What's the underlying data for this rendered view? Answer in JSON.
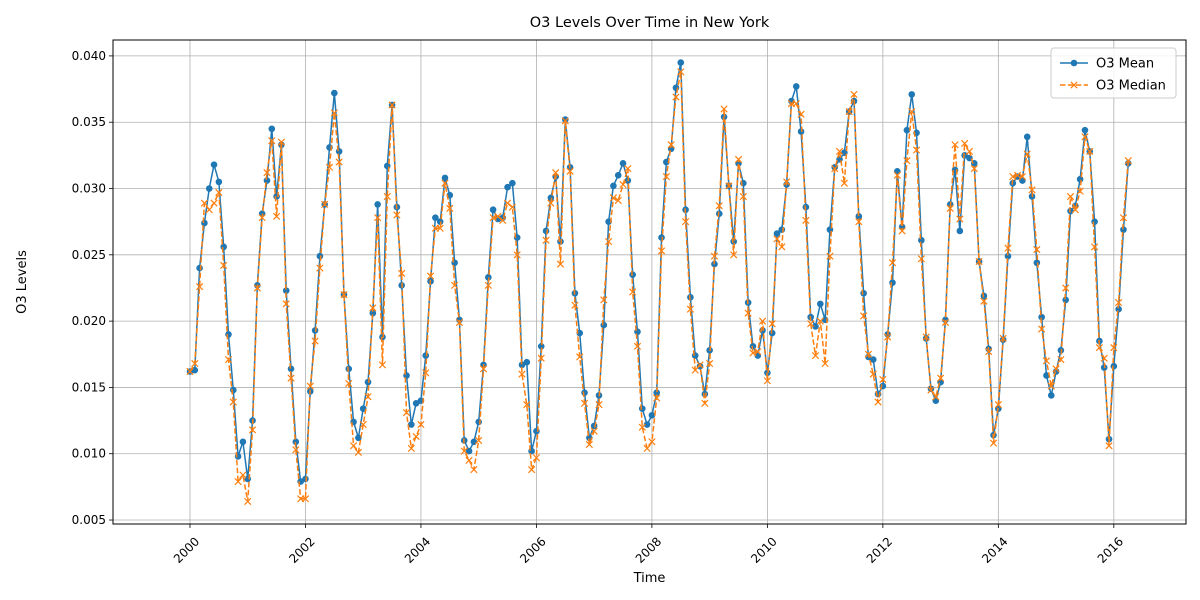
{
  "chart_data": {
    "type": "line",
    "title": "O3 Levels Over Time in New York",
    "xlabel": "Time",
    "ylabel": "O3 Levels",
    "x_start": "2000-01",
    "x_frequency": "monthly",
    "xlim": [
      "1998-09",
      "2017-04"
    ],
    "ylim": [
      0.0047,
      0.0412
    ],
    "xticks": [
      "2000",
      "2002",
      "2004",
      "2006",
      "2008",
      "2010",
      "2012",
      "2014",
      "2016"
    ],
    "yticks": [
      "0.005",
      "0.010",
      "0.015",
      "0.020",
      "0.025",
      "0.030",
      "0.035",
      "0.040"
    ],
    "grid": true,
    "legend_position": "top-right",
    "series": [
      {
        "name": "O3 Mean",
        "color": "#1f77b4",
        "marker": "circle",
        "line_style": "solid",
        "values": [
          0.0162,
          0.0163,
          0.024,
          0.0274,
          0.03,
          0.0318,
          0.0305,
          0.0256,
          0.019,
          0.0148,
          0.0098,
          0.0109,
          0.0081,
          0.0125,
          0.0227,
          0.0281,
          0.0306,
          0.0345,
          0.0294,
          0.0333,
          0.0223,
          0.0164,
          0.0109,
          0.0079,
          0.0081,
          0.0147,
          0.0193,
          0.0249,
          0.0288,
          0.0331,
          0.0372,
          0.0328,
          0.022,
          0.0164,
          0.0124,
          0.0112,
          0.0134,
          0.0154,
          0.0206,
          0.0288,
          0.0188,
          0.0317,
          0.0363,
          0.0286,
          0.0227,
          0.0159,
          0.0122,
          0.0138,
          0.014,
          0.0174,
          0.023,
          0.0278,
          0.0275,
          0.0308,
          0.0295,
          0.0244,
          0.0201,
          0.011,
          0.0102,
          0.0109,
          0.0124,
          0.0167,
          0.0233,
          0.0284,
          0.0277,
          0.0278,
          0.0301,
          0.0304,
          0.0263,
          0.0167,
          0.0169,
          0.0102,
          0.0117,
          0.0181,
          0.0268,
          0.0293,
          0.0309,
          0.026,
          0.0352,
          0.0316,
          0.0221,
          0.0191,
          0.0146,
          0.0112,
          0.0121,
          0.0144,
          0.0197,
          0.0275,
          0.0302,
          0.031,
          0.0319,
          0.0306,
          0.0235,
          0.0192,
          0.0134,
          0.0122,
          0.0129,
          0.0146,
          0.0263,
          0.032,
          0.033,
          0.0376,
          0.0395,
          0.0284,
          0.0218,
          0.0174,
          0.0166,
          0.0145,
          0.0178,
          0.0243,
          0.0281,
          0.0354,
          0.0302,
          0.026,
          0.0319,
          0.0304,
          0.0214,
          0.0181,
          0.0174,
          0.0193,
          0.0161,
          0.0191,
          0.0266,
          0.0269,
          0.0303,
          0.0366,
          0.0377,
          0.0343,
          0.0286,
          0.0203,
          0.0196,
          0.0213,
          0.0201,
          0.0269,
          0.0316,
          0.0322,
          0.0327,
          0.0358,
          0.0366,
          0.0279,
          0.0221,
          0.0173,
          0.0171,
          0.0145,
          0.0151,
          0.019,
          0.0229,
          0.0313,
          0.0271,
          0.0344,
          0.0371,
          0.0342,
          0.0261,
          0.0187,
          0.0149,
          0.014,
          0.0154,
          0.0201,
          0.0288,
          0.0314,
          0.0268,
          0.0325,
          0.0323,
          0.0319,
          0.0245,
          0.0219,
          0.0179,
          0.0114,
          0.0134,
          0.0186,
          0.0249,
          0.0304,
          0.0309,
          0.0306,
          0.0339,
          0.0294,
          0.0244,
          0.0203,
          0.0159,
          0.0144,
          0.0162,
          0.0178,
          0.0216,
          0.0283,
          0.0287,
          0.0307,
          0.0344,
          0.0328,
          0.0275,
          0.0185,
          0.0165,
          0.0111,
          0.0166,
          0.0209,
          0.0269,
          0.0319
        ]
      },
      {
        "name": "O3 Median",
        "color": "#ff7f0e",
        "marker": "x",
        "line_style": "dashed",
        "values": [
          0.0162,
          0.0168,
          0.0226,
          0.0289,
          0.0284,
          0.0289,
          0.0297,
          0.0242,
          0.0171,
          0.0139,
          0.0079,
          0.0084,
          0.0064,
          0.0118,
          0.0225,
          0.0278,
          0.0312,
          0.0336,
          0.0279,
          0.0335,
          0.0213,
          0.0157,
          0.0103,
          0.0066,
          0.0066,
          0.0151,
          0.0185,
          0.024,
          0.0288,
          0.0316,
          0.0357,
          0.032,
          0.022,
          0.0153,
          0.0106,
          0.0101,
          0.0122,
          0.0143,
          0.021,
          0.0278,
          0.0167,
          0.0294,
          0.0363,
          0.028,
          0.0236,
          0.0131,
          0.0104,
          0.0113,
          0.0122,
          0.0161,
          0.0234,
          0.027,
          0.027,
          0.0304,
          0.0285,
          0.0227,
          0.0199,
          0.0102,
          0.0095,
          0.0088,
          0.011,
          0.0164,
          0.0227,
          0.0278,
          0.0279,
          0.0276,
          0.0289,
          0.0286,
          0.025,
          0.016,
          0.0137,
          0.0088,
          0.0097,
          0.0172,
          0.0261,
          0.0289,
          0.0312,
          0.0243,
          0.0351,
          0.0313,
          0.0212,
          0.0173,
          0.0138,
          0.0107,
          0.0117,
          0.0137,
          0.0216,
          0.026,
          0.0293,
          0.0291,
          0.0303,
          0.0315,
          0.0222,
          0.0181,
          0.012,
          0.0104,
          0.0109,
          0.0142,
          0.0253,
          0.0309,
          0.0333,
          0.0369,
          0.0388,
          0.0275,
          0.0209,
          0.0163,
          0.0167,
          0.0138,
          0.0168,
          0.0249,
          0.0287,
          0.036,
          0.0302,
          0.025,
          0.0322,
          0.0294,
          0.0206,
          0.0176,
          0.0177,
          0.02,
          0.0155,
          0.0198,
          0.0262,
          0.0256,
          0.0305,
          0.0364,
          0.0364,
          0.0356,
          0.0276,
          0.0198,
          0.0174,
          0.02,
          0.0168,
          0.0249,
          0.0315,
          0.0328,
          0.0304,
          0.0358,
          0.0371,
          0.0275,
          0.0204,
          0.0175,
          0.016,
          0.0139,
          0.0156,
          0.0188,
          0.0244,
          0.031,
          0.0268,
          0.0321,
          0.0358,
          0.0329,
          0.0247,
          0.0188,
          0.0148,
          0.0143,
          0.0157,
          0.0199,
          0.0285,
          0.0333,
          0.0277,
          0.0334,
          0.0328,
          0.0315,
          0.0245,
          0.0215,
          0.0177,
          0.0108,
          0.0137,
          0.0187,
          0.0255,
          0.0309,
          0.031,
          0.0309,
          0.0326,
          0.0299,
          0.0254,
          0.0194,
          0.017,
          0.0151,
          0.0164,
          0.0171,
          0.0225,
          0.0294,
          0.0284,
          0.0298,
          0.0339,
          0.0328,
          0.0256,
          0.018,
          0.0172,
          0.0106,
          0.018,
          0.0214,
          0.0278,
          0.0321
        ]
      }
    ]
  }
}
